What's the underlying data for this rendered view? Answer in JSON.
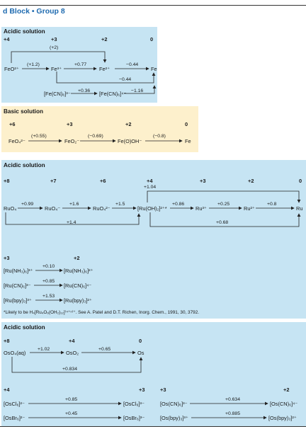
{
  "header": {
    "title": "d Block • Group 8"
  },
  "fe_acid": {
    "title": "Acidic solution",
    "ox": [
      "+4",
      "+3",
      "+2",
      "0"
    ],
    "species": [
      "FeO²⁺",
      "Fe³⁺",
      "Fe²⁺",
      "Fe",
      "[Fe(CN)₆]³⁻",
      "[Fe(CN)₆]⁴⁻"
    ],
    "potentials": [
      "(+1.2)",
      "+0.77",
      "−0.44",
      "(+2)",
      "−0.44",
      "+0.36",
      "−1.16"
    ]
  },
  "fe_base": {
    "title": "Basic solution",
    "ox": [
      "+6",
      "+3",
      "+2",
      "0"
    ],
    "species": [
      "FeO₄²⁻",
      "FeO₂⁻",
      "Fe(O)OH⁻",
      "Fe"
    ],
    "potentials": [
      "(+0.55)",
      "(−0.69)",
      "(−0.8)"
    ]
  },
  "ru_acid": {
    "title": "Acidic solution",
    "ox": [
      "+8",
      "+7",
      "+6",
      "+4",
      "+3",
      "+2",
      "0"
    ],
    "species": [
      "RuO₄",
      "RuO₄⁻",
      "RuO₄²⁻",
      "[Ru(OH)₂]²⁺*",
      "Ru³⁺",
      "Ru²⁺",
      "Ru"
    ],
    "potentials": [
      "+0.99",
      "+1.6",
      "+1.5",
      "+0.86",
      "+0.25",
      "+0.8",
      "+1.04",
      "+1.4",
      "+0.68"
    ],
    "complexes": {
      "ox": [
        "+3",
        "+2"
      ],
      "rows": [
        {
          "left": "[Ru(NH₃)₆]³⁺",
          "e": "+0.10",
          "right": "[Ru(NH₃)₆]²⁺"
        },
        {
          "left": "[Ru(CN)₆]³⁻",
          "e": "+0.85",
          "right": "[Ru(CN)₆]⁴⁻"
        },
        {
          "left": "[Ru(bpy)₃]³⁺",
          "e": "+1.53",
          "right": "[Ru(bpy)₃]²⁺"
        }
      ]
    },
    "footnote": "*Likely to be H₄[Ru₄O₆(OH₂)₁₂]⁽⁴⁺ⁿ⁾⁺. See A. Patel and D.T. Richen, Inorg. Chem., 1991, 30, 3792."
  },
  "os_acid": {
    "title": "Acidic solution",
    "ox": [
      "+8",
      "+4",
      "0"
    ],
    "species": [
      "OsO₄(aq)",
      "OsO₂",
      "Os"
    ],
    "potentials": [
      "+1.02",
      "+0.65",
      "+0.834"
    ],
    "complexes_left": {
      "ox": [
        "+4",
        "+3"
      ],
      "rows": [
        {
          "left": "[OsCl₆]²⁻",
          "e": "+0.85",
          "right": "[OsCl₆]³⁻"
        },
        {
          "left": "[OsBr₆]²⁻",
          "e": "+0.45",
          "right": "[OsBr₆]³⁻"
        }
      ]
    },
    "complexes_right": {
      "ox": [
        "+3",
        "+2"
      ],
      "rows": [
        {
          "left": "[Os(CN)₆]³⁻",
          "e": "+0.634",
          "right": "[Os(CN)₆]⁴⁻"
        },
        {
          "left": "[Os(bpy)₃]³⁺",
          "e": "+0.885",
          "right": "[Os(bpy)₃]²⁺"
        }
      ]
    }
  }
}
